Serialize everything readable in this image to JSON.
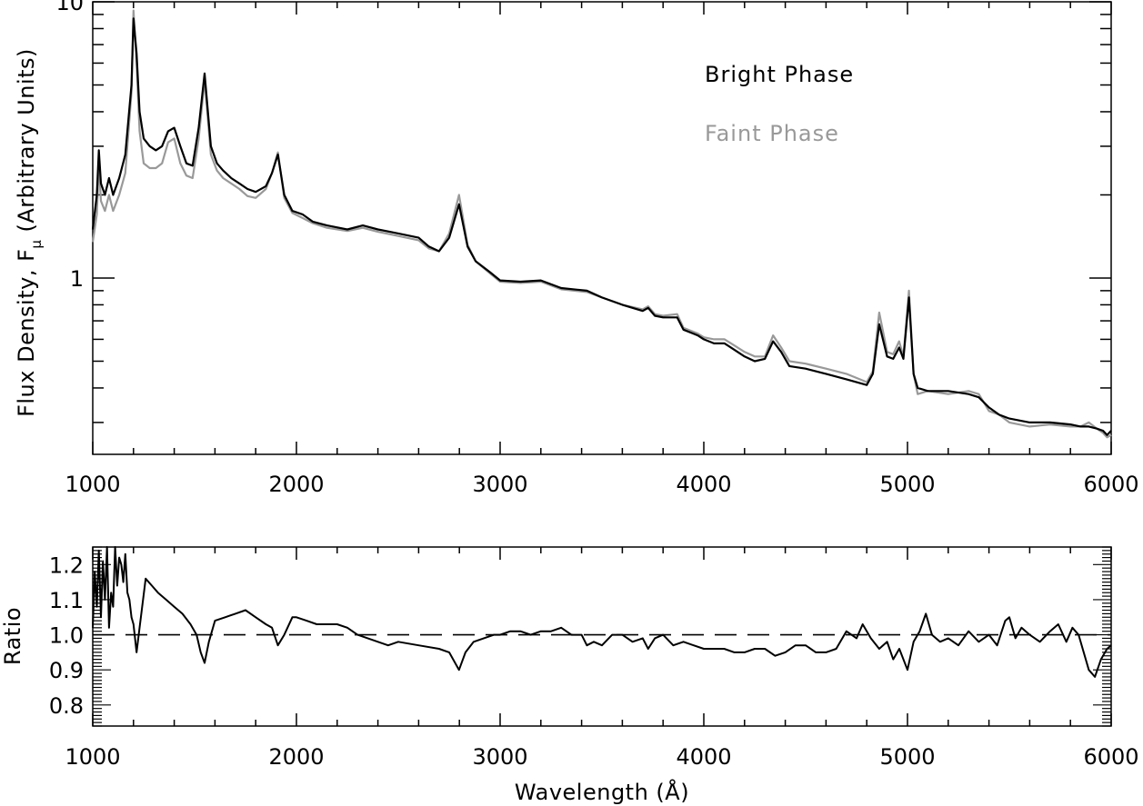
{
  "chart_data": [
    {
      "type": "line",
      "panel": "spectrum",
      "xlabel": "",
      "ylabel": "Flux Density, F",
      "ylabel_subscript": "μ",
      "ylabel_suffix": "(Arbitrary Units)",
      "xlim": [
        1000,
        6000
      ],
      "ylim": [
        0.23,
        10
      ],
      "yscale": "log",
      "x_ticks": [
        1000,
        2000,
        3000,
        4000,
        5000,
        6000
      ],
      "x_tick_labels": [
        "1000",
        "2000",
        "3000",
        "4000",
        "5000",
        "6000"
      ],
      "y_major_ticks": [
        1,
        10
      ],
      "y_tick_labels": [
        "1",
        "10"
      ],
      "legend_position": "top-right",
      "colors": {
        "bright": "#000000",
        "faint": "#999999"
      },
      "series": [
        {
          "name": "Bright Phase",
          "color": "#000000",
          "x": [
            1000,
            1020,
            1030,
            1040,
            1060,
            1080,
            1100,
            1130,
            1160,
            1190,
            1200,
            1215,
            1230,
            1250,
            1280,
            1310,
            1340,
            1370,
            1400,
            1430,
            1460,
            1490,
            1520,
            1549,
            1580,
            1610,
            1640,
            1680,
            1720,
            1760,
            1800,
            1850,
            1880,
            1909,
            1940,
            1980,
            2030,
            2080,
            2150,
            2250,
            2326,
            2400,
            2500,
            2600,
            2650,
            2700,
            2750,
            2798,
            2840,
            2880,
            2950,
            3000,
            3100,
            3200,
            3300,
            3426,
            3500,
            3600,
            3700,
            3727,
            3760,
            3800,
            3869,
            3900,
            3970,
            4000,
            4050,
            4102,
            4150,
            4200,
            4250,
            4300,
            4340,
            4380,
            4420,
            4500,
            4600,
            4700,
            4800,
            4830,
            4861,
            4900,
            4930,
            4959,
            4980,
            5007,
            5030,
            5050,
            5100,
            5200,
            5300,
            5350,
            5400,
            5450,
            5500,
            5600,
            5700,
            5800,
            5850,
            5890,
            5930,
            5960,
            5980,
            6000
          ],
          "y": [
            1.5,
            2.0,
            2.9,
            2.2,
            2.0,
            2.3,
            2.0,
            2.3,
            2.8,
            5.0,
            8.7,
            6.5,
            4.0,
            3.2,
            3.0,
            2.9,
            3.0,
            3.4,
            3.5,
            3.0,
            2.6,
            2.55,
            3.5,
            5.5,
            3.0,
            2.6,
            2.45,
            2.3,
            2.2,
            2.1,
            2.05,
            2.15,
            2.4,
            2.8,
            2.0,
            1.75,
            1.7,
            1.6,
            1.55,
            1.5,
            1.55,
            1.5,
            1.45,
            1.4,
            1.3,
            1.25,
            1.4,
            1.85,
            1.3,
            1.15,
            1.05,
            0.98,
            0.97,
            0.98,
            0.92,
            0.9,
            0.85,
            0.8,
            0.76,
            0.78,
            0.73,
            0.72,
            0.72,
            0.65,
            0.62,
            0.6,
            0.58,
            0.58,
            0.55,
            0.52,
            0.5,
            0.51,
            0.59,
            0.54,
            0.48,
            0.47,
            0.45,
            0.43,
            0.41,
            0.45,
            0.68,
            0.52,
            0.51,
            0.56,
            0.51,
            0.85,
            0.45,
            0.4,
            0.39,
            0.39,
            0.38,
            0.37,
            0.34,
            0.32,
            0.31,
            0.3,
            0.3,
            0.295,
            0.29,
            0.29,
            0.285,
            0.28,
            0.27,
            0.28
          ]
        },
        {
          "name": "Faint Phase",
          "color": "#999999",
          "x": [
            1000,
            1020,
            1030,
            1040,
            1060,
            1080,
            1100,
            1130,
            1160,
            1190,
            1200,
            1215,
            1230,
            1250,
            1280,
            1310,
            1340,
            1370,
            1400,
            1430,
            1460,
            1490,
            1520,
            1549,
            1580,
            1610,
            1640,
            1680,
            1720,
            1760,
            1800,
            1850,
            1880,
            1909,
            1940,
            1980,
            2030,
            2080,
            2150,
            2250,
            2326,
            2400,
            2500,
            2600,
            2650,
            2700,
            2750,
            2798,
            2840,
            2880,
            2950,
            3000,
            3100,
            3200,
            3300,
            3426,
            3500,
            3600,
            3700,
            3727,
            3760,
            3800,
            3869,
            3900,
            3970,
            4000,
            4050,
            4102,
            4150,
            4200,
            4250,
            4300,
            4340,
            4380,
            4420,
            4500,
            4600,
            4700,
            4800,
            4830,
            4861,
            4900,
            4930,
            4959,
            4980,
            5007,
            5030,
            5050,
            5100,
            5200,
            5300,
            5350,
            5400,
            5450,
            5500,
            5600,
            5700,
            5800,
            5850,
            5890,
            5930,
            5960,
            5980,
            6000
          ],
          "y": [
            1.35,
            1.7,
            2.6,
            1.9,
            1.75,
            2.0,
            1.75,
            2.0,
            2.4,
            4.7,
            9.3,
            6.0,
            3.4,
            2.6,
            2.5,
            2.5,
            2.6,
            3.1,
            3.2,
            2.6,
            2.35,
            2.3,
            3.2,
            5.2,
            2.8,
            2.45,
            2.3,
            2.2,
            2.1,
            1.98,
            1.95,
            2.1,
            2.4,
            2.85,
            1.95,
            1.72,
            1.65,
            1.58,
            1.52,
            1.48,
            1.52,
            1.47,
            1.42,
            1.37,
            1.28,
            1.25,
            1.45,
            2.0,
            1.32,
            1.15,
            1.04,
            0.97,
            0.96,
            0.97,
            0.91,
            0.89,
            0.85,
            0.8,
            0.77,
            0.79,
            0.74,
            0.73,
            0.74,
            0.66,
            0.63,
            0.61,
            0.6,
            0.6,
            0.57,
            0.54,
            0.52,
            0.52,
            0.62,
            0.56,
            0.5,
            0.49,
            0.47,
            0.45,
            0.42,
            0.46,
            0.75,
            0.54,
            0.53,
            0.59,
            0.52,
            0.9,
            0.45,
            0.38,
            0.39,
            0.38,
            0.39,
            0.38,
            0.33,
            0.32,
            0.3,
            0.29,
            0.295,
            0.29,
            0.29,
            0.3,
            0.285,
            0.275,
            0.265,
            0.27
          ]
        }
      ]
    },
    {
      "type": "line",
      "panel": "ratio",
      "xlabel": "Wavelength (Å)",
      "ylabel": "Ratio",
      "xlim": [
        1000,
        6000
      ],
      "ylim": [
        0.74,
        1.25
      ],
      "x_ticks": [
        1000,
        2000,
        3000,
        4000,
        5000,
        6000
      ],
      "x_tick_labels": [
        "1000",
        "2000",
        "3000",
        "4000",
        "5000",
        "6000"
      ],
      "y_ticks": [
        0.8,
        0.9,
        1.0,
        1.1,
        1.2
      ],
      "y_tick_labels": [
        "0.8",
        "0.9",
        "1.0",
        "1.1",
        "1.2"
      ],
      "reference_line": {
        "y": 1.0,
        "style": "dashed"
      },
      "series": [
        {
          "name": "",
          "color": "#000000",
          "x": [
            1000,
            1010,
            1020,
            1030,
            1040,
            1050,
            1060,
            1070,
            1080,
            1090,
            1100,
            1110,
            1120,
            1130,
            1140,
            1150,
            1160,
            1170,
            1180,
            1190,
            1200,
            1215,
            1230,
            1260,
            1290,
            1320,
            1360,
            1400,
            1440,
            1480,
            1510,
            1530,
            1549,
            1570,
            1600,
            1650,
            1700,
            1750,
            1800,
            1850,
            1880,
            1909,
            1940,
            1980,
            2000,
            2050,
            2100,
            2150,
            2200,
            2250,
            2300,
            2350,
            2400,
            2450,
            2500,
            2600,
            2700,
            2750,
            2798,
            2830,
            2870,
            2920,
            2970,
            3000,
            3050,
            3100,
            3150,
            3200,
            3250,
            3300,
            3350,
            3400,
            3426,
            3460,
            3500,
            3550,
            3600,
            3650,
            3700,
            3727,
            3760,
            3800,
            3850,
            3900,
            3950,
            4000,
            4050,
            4100,
            4150,
            4200,
            4250,
            4300,
            4350,
            4400,
            4450,
            4500,
            4550,
            4600,
            4650,
            4700,
            4750,
            4780,
            4820,
            4861,
            4900,
            4930,
            4960,
            5000,
            5030,
            5060,
            5090,
            5120,
            5160,
            5200,
            5250,
            5300,
            5350,
            5400,
            5440,
            5480,
            5500,
            5530,
            5560,
            5600,
            5650,
            5700,
            5740,
            5780,
            5810,
            5840,
            5870,
            5890,
            5920,
            5950,
            5980,
            6000
          ],
          "y": [
            1.02,
            1.18,
            1.08,
            1.24,
            1.05,
            1.21,
            1.1,
            1.25,
            1.02,
            1.12,
            1.08,
            1.25,
            1.14,
            1.22,
            1.2,
            1.15,
            1.23,
            1.12,
            1.1,
            1.05,
            1.03,
            0.95,
            1.02,
            1.16,
            1.14,
            1.12,
            1.1,
            1.08,
            1.06,
            1.03,
            1.0,
            0.95,
            0.92,
            0.98,
            1.04,
            1.05,
            1.06,
            1.07,
            1.05,
            1.03,
            1.02,
            0.97,
            1.0,
            1.05,
            1.05,
            1.04,
            1.03,
            1.03,
            1.03,
            1.02,
            1.0,
            0.99,
            0.98,
            0.97,
            0.98,
            0.97,
            0.96,
            0.95,
            0.9,
            0.95,
            0.98,
            0.99,
            1.0,
            1.0,
            1.01,
            1.01,
            1.0,
            1.01,
            1.01,
            1.02,
            1.0,
            1.0,
            0.97,
            0.98,
            0.97,
            1.0,
            1.0,
            0.98,
            0.99,
            0.96,
            0.99,
            1.0,
            0.97,
            0.98,
            0.97,
            0.96,
            0.96,
            0.96,
            0.95,
            0.95,
            0.96,
            0.96,
            0.94,
            0.95,
            0.97,
            0.97,
            0.95,
            0.95,
            0.96,
            1.01,
            0.99,
            1.03,
            0.99,
            0.96,
            0.98,
            0.93,
            0.96,
            0.9,
            0.98,
            1.01,
            1.06,
            1.0,
            0.98,
            0.99,
            0.97,
            1.01,
            0.98,
            1.0,
            0.97,
            1.04,
            1.05,
            0.99,
            1.02,
            1.0,
            0.98,
            1.01,
            1.03,
            0.98,
            1.02,
            1.0,
            0.94,
            0.9,
            0.88,
            0.93,
            0.96,
            0.97
          ]
        }
      ]
    }
  ]
}
